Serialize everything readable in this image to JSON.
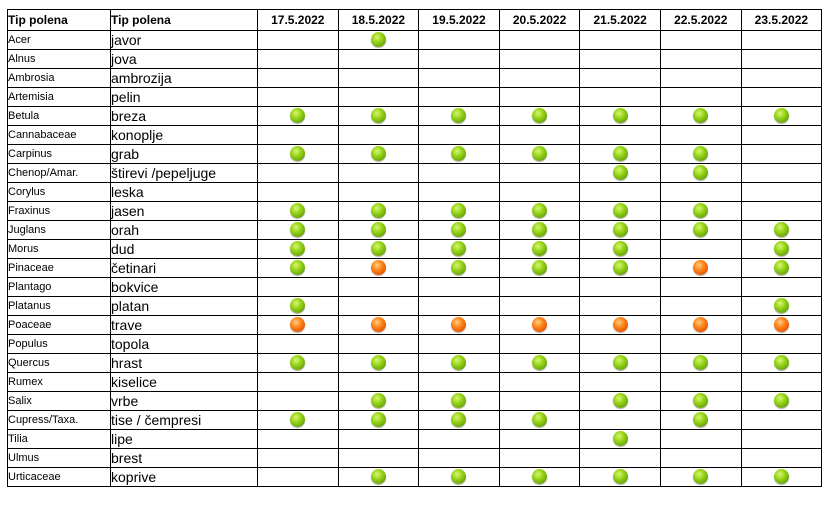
{
  "headers": {
    "latin": "Tip polena",
    "local": "Tip polena",
    "dates": [
      "17.5.2022",
      "18.5.2022",
      "19.5.2022",
      "20.5.2022",
      "21.5.2022",
      "22.5.2022",
      "23.5.2022"
    ]
  },
  "legend_colors": {
    "green": "#8bc81a",
    "orange": "#ff7a12"
  },
  "rows": [
    {
      "latin": "Acer",
      "local": "javor",
      "levels": [
        "",
        "green",
        "",
        "",
        "",
        "",
        ""
      ]
    },
    {
      "latin": "Alnus",
      "local": "jova",
      "levels": [
        "",
        "",
        "",
        "",
        "",
        "",
        ""
      ]
    },
    {
      "latin": "Ambrosia",
      "local": "ambrozija",
      "levels": [
        "",
        "",
        "",
        "",
        "",
        "",
        ""
      ]
    },
    {
      "latin": "Artemisia",
      "local": "pelin",
      "levels": [
        "",
        "",
        "",
        "",
        "",
        "",
        ""
      ]
    },
    {
      "latin": "Betula",
      "local": "breza",
      "levels": [
        "green",
        "green",
        "green",
        "green",
        "green",
        "green",
        "green"
      ]
    },
    {
      "latin": "Cannabaceae",
      "local": "konoplje",
      "levels": [
        "",
        "",
        "",
        "",
        "",
        "",
        ""
      ]
    },
    {
      "latin": "Carpinus",
      "local": "grab",
      "levels": [
        "green",
        "green",
        "green",
        "green",
        "green",
        "green",
        ""
      ]
    },
    {
      "latin": "Chenop/Amar.",
      "local": "štirevi /pepeljuge",
      "levels": [
        "",
        "",
        "",
        "",
        "green",
        "green",
        ""
      ]
    },
    {
      "latin": "Corylus",
      "local": "leska",
      "levels": [
        "",
        "",
        "",
        "",
        "",
        "",
        ""
      ]
    },
    {
      "latin": "Fraxinus",
      "local": "jasen",
      "levels": [
        "green",
        "green",
        "green",
        "green",
        "green",
        "green",
        ""
      ]
    },
    {
      "latin": "Juglans",
      "local": "orah",
      "levels": [
        "green",
        "green",
        "green",
        "green",
        "green",
        "green",
        "green"
      ]
    },
    {
      "latin": "Morus",
      "local": "dud",
      "levels": [
        "green",
        "green",
        "green",
        "green",
        "green",
        "",
        "green"
      ]
    },
    {
      "latin": "Pinaceae",
      "local": "četinari",
      "levels": [
        "green",
        "orange",
        "green",
        "green",
        "green",
        "orange",
        "green"
      ]
    },
    {
      "latin": "Plantago",
      "local": "bokvice",
      "levels": [
        "",
        "",
        "",
        "",
        "",
        "",
        ""
      ]
    },
    {
      "latin": "Platanus",
      "local": "platan",
      "levels": [
        "green",
        "",
        "",
        "",
        "",
        "",
        "green"
      ]
    },
    {
      "latin": "Poaceae",
      "local": "trave",
      "levels": [
        "orange",
        "orange",
        "orange",
        "orange",
        "orange",
        "orange",
        "orange"
      ]
    },
    {
      "latin": "Populus",
      "local": "topola",
      "levels": [
        "",
        "",
        "",
        "",
        "",
        "",
        ""
      ]
    },
    {
      "latin": "Quercus",
      "local": "hrast",
      "levels": [
        "green",
        "green",
        "green",
        "green",
        "green",
        "green",
        "green"
      ]
    },
    {
      "latin": "Rumex",
      "local": "kiselice",
      "levels": [
        "",
        "",
        "",
        "",
        "",
        "",
        ""
      ]
    },
    {
      "latin": "Salix",
      "local": "vrbe",
      "levels": [
        "",
        "green",
        "green",
        "",
        "green",
        "green",
        "green"
      ]
    },
    {
      "latin": "Cupress/Taxa.",
      "local": "tise / čempresi",
      "levels": [
        "green",
        "green",
        "green",
        "green",
        "",
        "green",
        ""
      ]
    },
    {
      "latin": "Tilia",
      "local": "lipe",
      "levels": [
        "",
        "",
        "",
        "",
        "green",
        "",
        ""
      ]
    },
    {
      "latin": "Ulmus",
      "local": "brest",
      "levels": [
        "",
        "",
        "",
        "",
        "",
        "",
        ""
      ]
    },
    {
      "latin": "Urticaceae",
      "local": "koprive",
      "levels": [
        "",
        "green",
        "green",
        "green",
        "green",
        "green",
        "green"
      ]
    }
  ]
}
